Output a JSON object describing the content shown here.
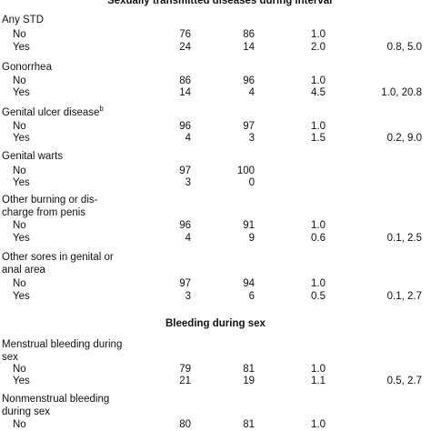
{
  "section_headers": [
    "Sexually transmitted diseases during interval",
    "Bleeding during sex"
  ],
  "rows": [
    {
      "label": "Any STD"
    },
    {
      "label": "No",
      "c1": "76",
      "c2": "86",
      "c3": "1.0",
      "c4": ""
    },
    {
      "label": "Yes",
      "c1": "24",
      "c2": "14",
      "c3": "2.0",
      "c4": "0.8, 5.0"
    },
    {
      "label": "Gonorrhea"
    },
    {
      "label": "No",
      "c1": "86",
      "c2": "96",
      "c3": "1.0",
      "c4": ""
    },
    {
      "label": "Yes",
      "c1": "14",
      "c2": "4",
      "c3": "4.5",
      "c4": "1.0, 20.8"
    },
    {
      "label": "Genital ulcer disease",
      "sup": "b"
    },
    {
      "label": "No",
      "c1": "96",
      "c2": "97",
      "c3": "1.0",
      "c4": ""
    },
    {
      "label": "Yes",
      "c1": "4",
      "c2": "3",
      "c3": "1.5",
      "c4": "0.2, 9.0"
    },
    {
      "label": "Genital warts"
    },
    {
      "label": "No",
      "c1": "97",
      "c2": "100",
      "c3": "",
      "c4": ""
    },
    {
      "label": "Yes",
      "c1": "3",
      "c2": "0",
      "c3": "",
      "c4": ""
    },
    {
      "label": "Other burning or dis-"
    },
    {
      "label": "charge from penis"
    },
    {
      "label": "No",
      "c1": "96",
      "c2": "91",
      "c3": "1.0",
      "c4": ""
    },
    {
      "label": "Yes",
      "c1": "4",
      "c2": "9",
      "c3": "0.6",
      "c4": "0.1, 2.5"
    },
    {
      "label": "Other sores in genital or"
    },
    {
      "label": "anal area"
    },
    {
      "label": "No",
      "c1": "97",
      "c2": "94",
      "c3": "1.0",
      "c4": ""
    },
    {
      "label": "Yes",
      "c1": "3",
      "c2": "6",
      "c3": "0.5",
      "c4": "0.1, 2.7"
    },
    {
      "label": "Menstrual bleeding during"
    },
    {
      "label": "sex"
    },
    {
      "label": "No",
      "c1": "79",
      "c2": "81",
      "c3": "1.0",
      "c4": ""
    },
    {
      "label": "Yes",
      "c1": "21",
      "c2": "19",
      "c3": "1.1",
      "c4": "0.5, 2.7"
    },
    {
      "label": "Nonmenstrual bleeding"
    },
    {
      "label": "during sex"
    },
    {
      "label": "No",
      "c1": "80",
      "c2": "81",
      "c3": "1.0",
      "c4": ""
    }
  ]
}
